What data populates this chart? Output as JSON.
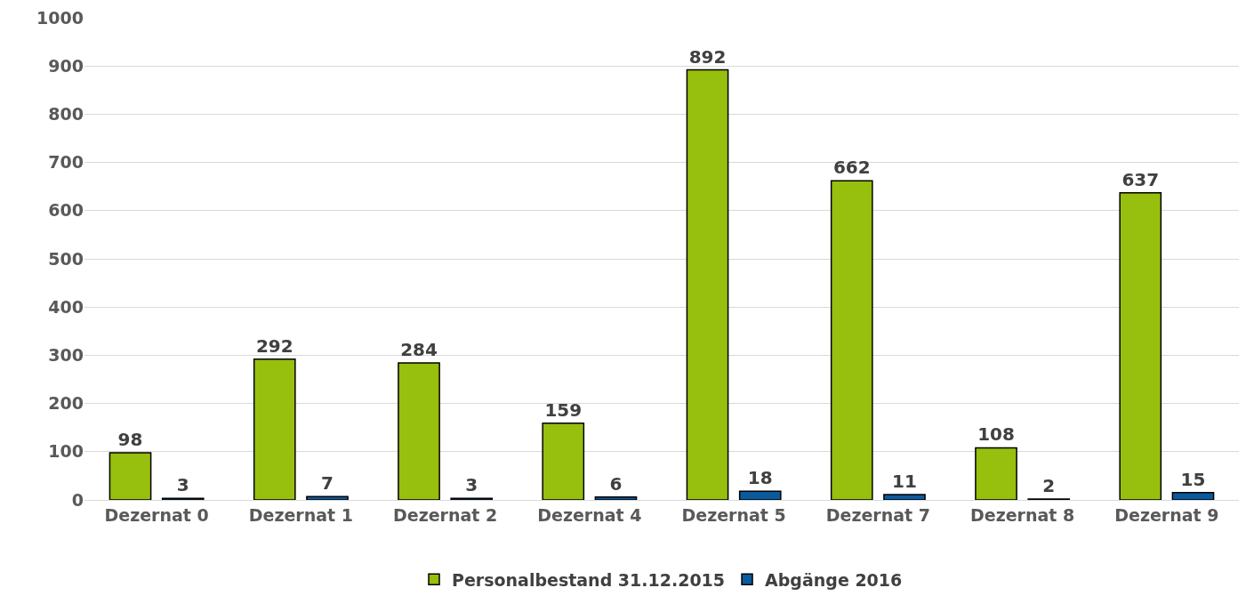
{
  "chart_data": {
    "type": "bar",
    "categories": [
      "Dezernat 0",
      "Dezernat 1",
      "Dezernat 2",
      "Dezernat 4",
      "Dezernat 5",
      "Dezernat 7",
      "Dezernat 8",
      "Dezernat 9"
    ],
    "series": [
      {
        "name": "Personalbestand 31.12.2015",
        "color": "#97bf0d",
        "values": [
          98,
          292,
          284,
          159,
          892,
          662,
          108,
          637
        ]
      },
      {
        "name": "Abgänge 2016",
        "color": "#0b5a9e",
        "values": [
          3,
          7,
          3,
          6,
          18,
          11,
          2,
          15
        ]
      }
    ],
    "ylim": [
      0,
      1000
    ],
    "yticks": [
      0,
      100,
      200,
      300,
      400,
      500,
      600,
      700,
      800,
      900,
      1000
    ],
    "grid": "y",
    "legend": "bottom",
    "data_labels": true
  }
}
